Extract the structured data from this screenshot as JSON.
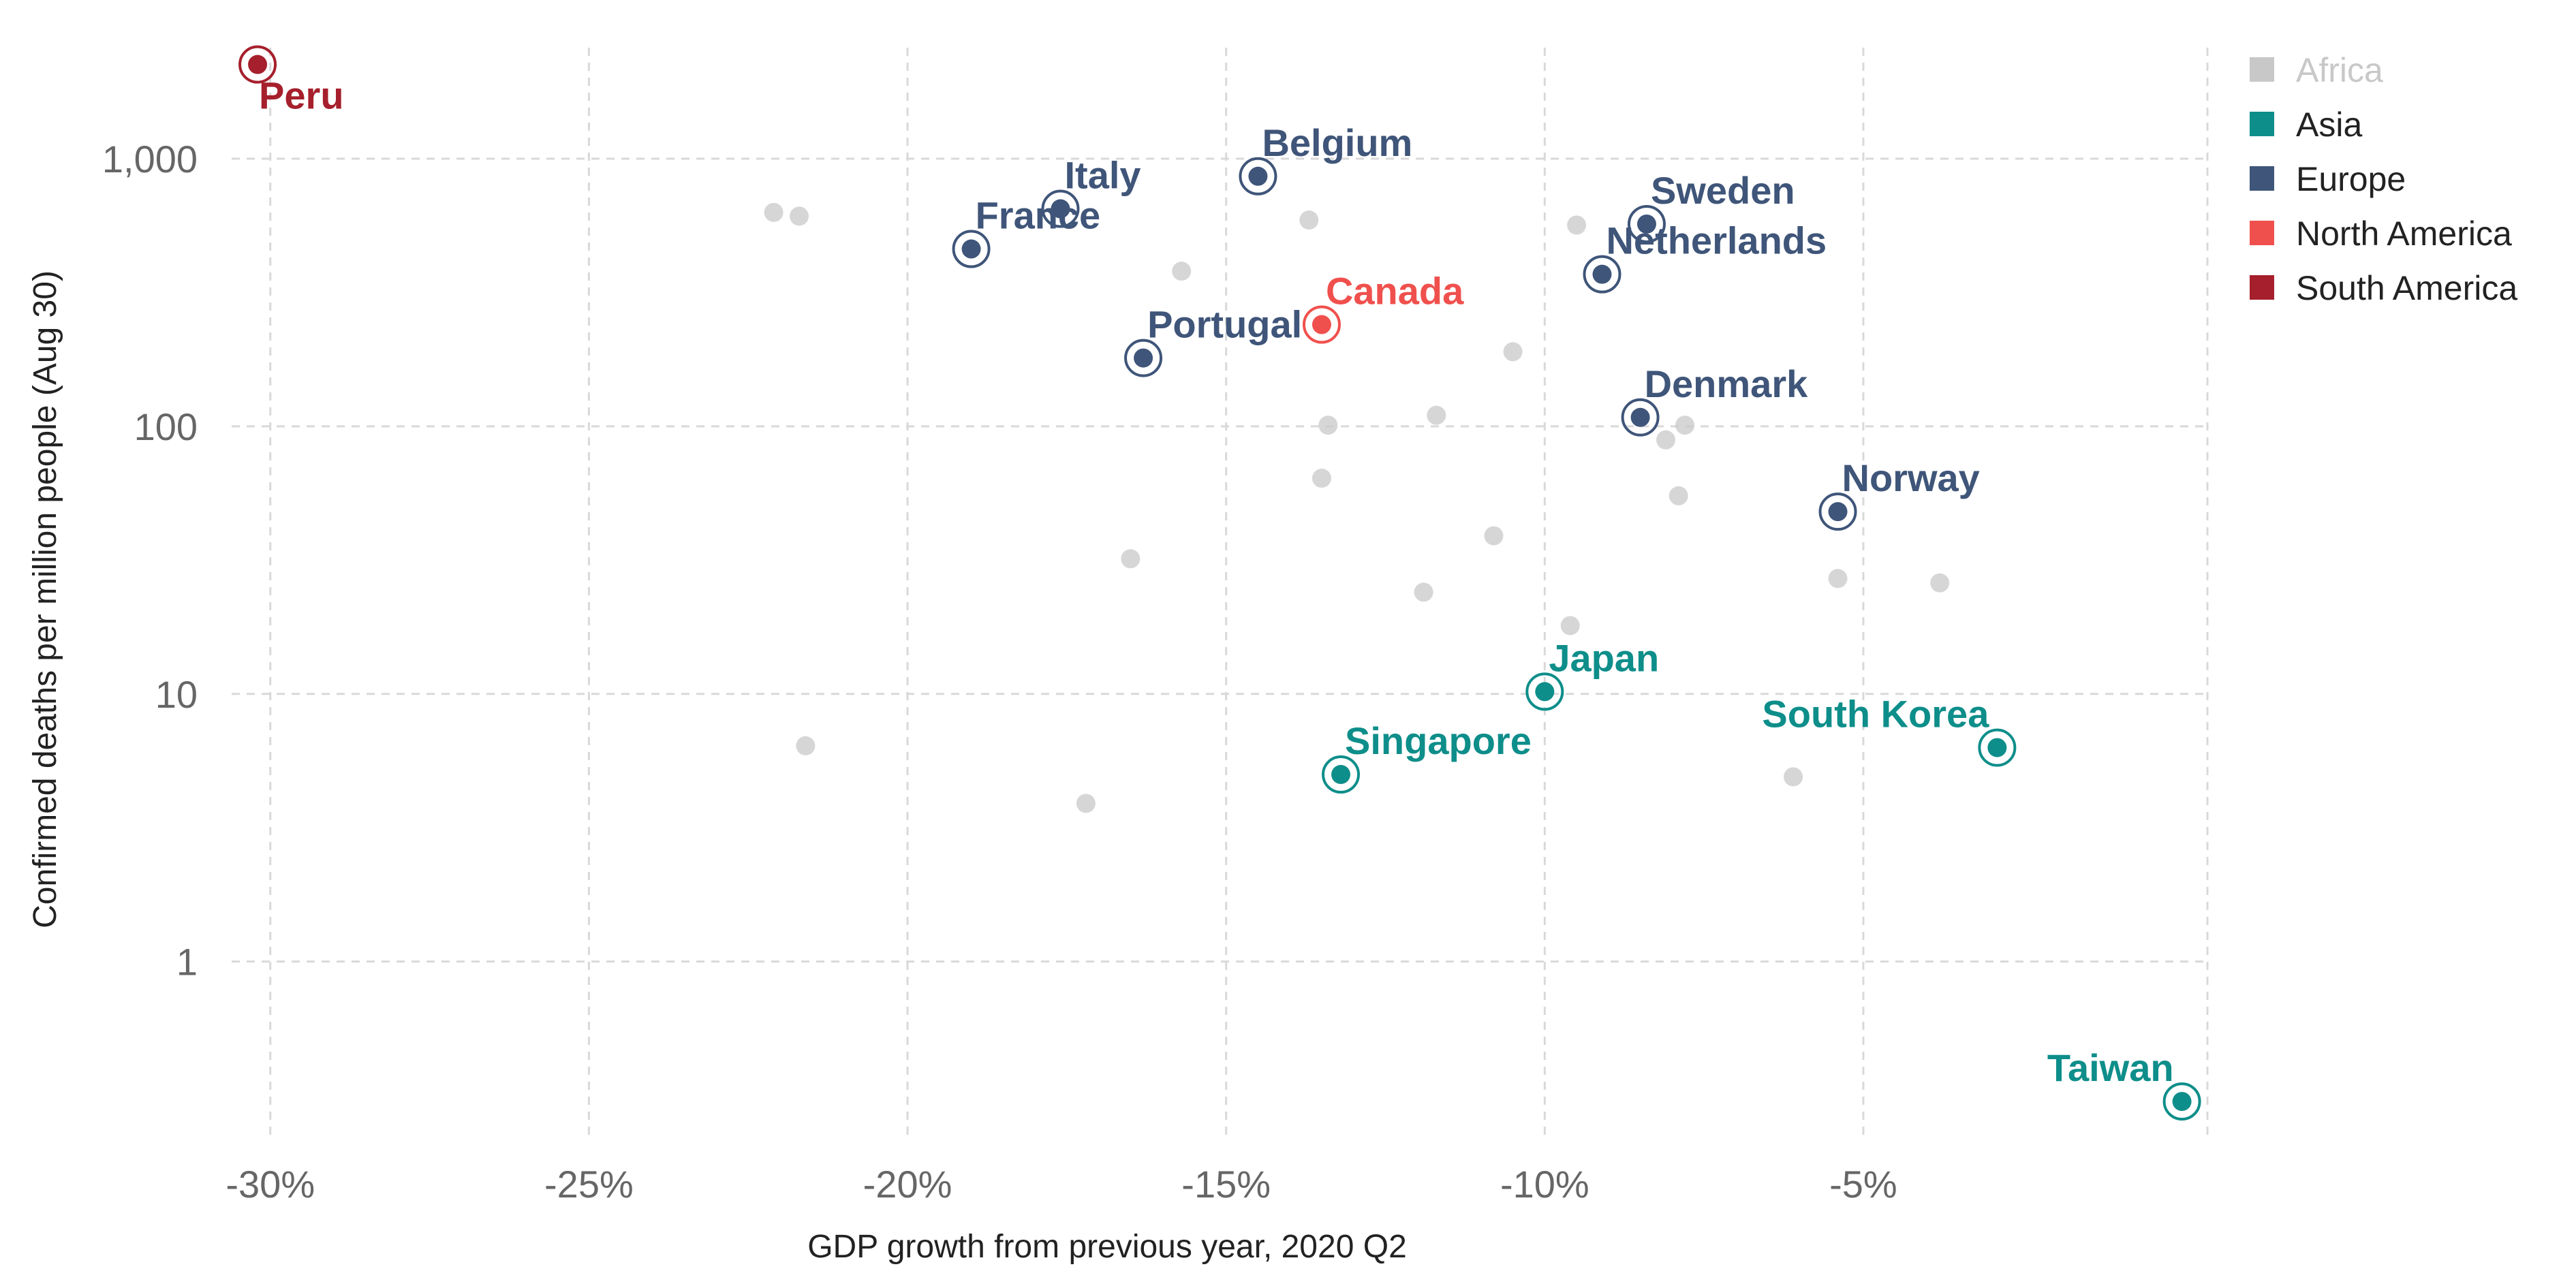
{
  "chart_data": {
    "type": "scatter",
    "xlabel": "GDP growth from previous year, 2020 Q2",
    "ylabel": "Confirmed deaths per million people (Aug 30)",
    "x_scale": "linear",
    "y_scale": "log",
    "xlim": [
      -30.5,
      0.4
    ],
    "ylim": [
      0.22,
      2600
    ],
    "x_ticks": [
      -30,
      -25,
      -20,
      -15,
      -10,
      -5
    ],
    "x_tick_labels": [
      "-30%",
      "-25%",
      "-20%",
      "-15%",
      "-10%",
      "-5%"
    ],
    "y_ticks": [
      1,
      10,
      100,
      1000
    ],
    "y_tick_labels": [
      "1",
      "10",
      "100",
      "1,000"
    ],
    "grid": true,
    "legend_position": "top-right",
    "colors": {
      "Africa": "#c8c8c8",
      "Asia": "#0e8e8a",
      "Europe": "#3f5579",
      "North America": "#f0504d",
      "South America": "#a61f2c"
    },
    "legend": [
      "Africa",
      "Asia",
      "Europe",
      "North America",
      "South America"
    ],
    "labeled_points": [
      {
        "name": "Peru",
        "region": "South America",
        "x": -30.2,
        "y": 2250,
        "label_pos": "below-right"
      },
      {
        "name": "Belgium",
        "region": "Europe",
        "x": -14.5,
        "y": 860,
        "label_pos": "above-right"
      },
      {
        "name": "Italy",
        "region": "Europe",
        "x": -17.6,
        "y": 650,
        "label_pos": "above-right"
      },
      {
        "name": "France",
        "region": "Europe",
        "x": -19.0,
        "y": 460,
        "label_pos": "above-right"
      },
      {
        "name": "Sweden",
        "region": "Europe",
        "x": -8.4,
        "y": 570,
        "label_pos": "above-right"
      },
      {
        "name": "Netherlands",
        "region": "Europe",
        "x": -9.1,
        "y": 370,
        "label_pos": "above-right"
      },
      {
        "name": "Canada",
        "region": "North America",
        "x": -13.5,
        "y": 240,
        "label_pos": "above-right"
      },
      {
        "name": "Portugal",
        "region": "Europe",
        "x": -16.3,
        "y": 180,
        "label_pos": "above-right"
      },
      {
        "name": "Denmark",
        "region": "Europe",
        "x": -8.5,
        "y": 108,
        "label_pos": "above-right"
      },
      {
        "name": "Norway",
        "region": "Europe",
        "x": -5.4,
        "y": 48,
        "label_pos": "above-right"
      },
      {
        "name": "Japan",
        "region": "Asia",
        "x": -10.0,
        "y": 10.2,
        "label_pos": "above-right"
      },
      {
        "name": "Singapore",
        "region": "Asia",
        "x": -13.2,
        "y": 5.0,
        "label_pos": "above-right"
      },
      {
        "name": "South Korea",
        "region": "Asia",
        "x": -2.9,
        "y": 6.3,
        "label_pos": "above-left"
      },
      {
        "name": "Taiwan",
        "region": "Asia",
        "x": 0.0,
        "y": 0.3,
        "label_pos": "above-left"
      }
    ],
    "other_points": [
      {
        "x": -22.1,
        "y": 630
      },
      {
        "x": -21.7,
        "y": 610
      },
      {
        "x": -13.7,
        "y": 590
      },
      {
        "x": -9.5,
        "y": 565
      },
      {
        "x": -15.7,
        "y": 380
      },
      {
        "x": -10.5,
        "y": 190
      },
      {
        "x": -11.7,
        "y": 110
      },
      {
        "x": -13.4,
        "y": 101
      },
      {
        "x": -7.8,
        "y": 101
      },
      {
        "x": -8.1,
        "y": 89
      },
      {
        "x": -13.5,
        "y": 64
      },
      {
        "x": -7.9,
        "y": 55
      },
      {
        "x": -10.8,
        "y": 39
      },
      {
        "x": -16.5,
        "y": 32
      },
      {
        "x": -5.4,
        "y": 27
      },
      {
        "x": -3.8,
        "y": 26
      },
      {
        "x": -11.9,
        "y": 24
      },
      {
        "x": -9.6,
        "y": 18
      },
      {
        "x": -21.6,
        "y": 6.4
      },
      {
        "x": -6.1,
        "y": 4.9
      },
      {
        "x": -17.2,
        "y": 3.9
      }
    ]
  }
}
